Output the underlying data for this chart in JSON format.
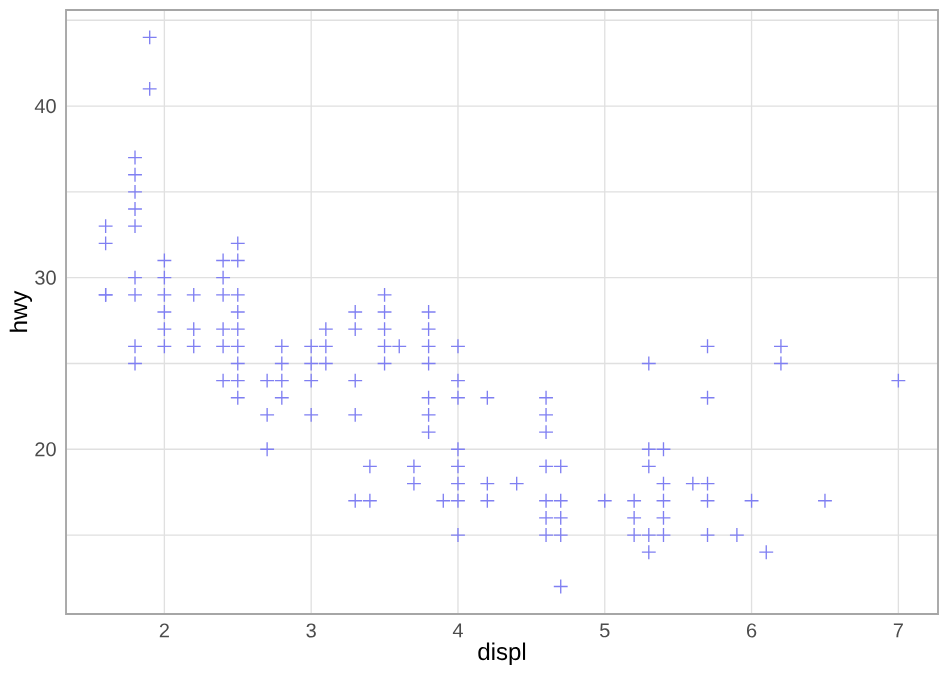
{
  "chart_data": {
    "type": "scatter",
    "xlabel": "displ",
    "ylabel": "hwy",
    "x": [
      1.8,
      1.9,
      1.9,
      1.8,
      1.8,
      1.8,
      1.8,
      1.6,
      1.6,
      1.6,
      2.5,
      2.0,
      2.4,
      2.5,
      1.8,
      2.0,
      2.4,
      1.6,
      1.8,
      2.0,
      2.2,
      2.4,
      2.5,
      3.5,
      2.0,
      2.5,
      3.3,
      3.5,
      3.8,
      2.0,
      2.2,
      2.4,
      2.5,
      3.1,
      3.3,
      3.5,
      3.8,
      1.8,
      2.0,
      2.2,
      2.4,
      2.5,
      2.8,
      3.0,
      3.1,
      3.5,
      3.6,
      3.8,
      4.0,
      5.7,
      6.2,
      1.8,
      2.5,
      2.8,
      3.0,
      3.1,
      3.5,
      3.8,
      5.3,
      6.2,
      2.4,
      2.5,
      2.7,
      2.8,
      3.0,
      3.3,
      4.0,
      7.0,
      2.5,
      2.8,
      3.8,
      4.0,
      4.2,
      4.6,
      5.7,
      2.7,
      3.0,
      3.3,
      3.8,
      4.6,
      3.8,
      4.6,
      2.7,
      4.0,
      5.3,
      5.4,
      3.4,
      3.7,
      4.0,
      4.6,
      4.7,
      5.3,
      3.7,
      4.0,
      4.2,
      4.4,
      5.4,
      5.6,
      5.7,
      3.3,
      3.4,
      3.9,
      4.0,
      4.2,
      4.6,
      4.7,
      5.0,
      5.2,
      5.4,
      5.7,
      6.0,
      6.5,
      4.6,
      4.7,
      5.2,
      5.4,
      4.0,
      4.6,
      4.7,
      5.2,
      5.3,
      5.4,
      5.7,
      5.9,
      5.3,
      6.1,
      4.7
    ],
    "values": [
      34,
      44,
      41,
      37,
      36,
      35,
      33,
      33,
      32,
      29,
      32,
      31,
      31,
      31,
      30,
      30,
      30,
      29,
      29,
      29,
      29,
      29,
      29,
      29,
      28,
      28,
      28,
      28,
      28,
      27,
      27,
      27,
      27,
      27,
      27,
      27,
      27,
      26,
      26,
      26,
      26,
      26,
      26,
      26,
      26,
      26,
      26,
      26,
      26,
      26,
      26,
      25,
      25,
      25,
      25,
      25,
      25,
      25,
      25,
      25,
      24,
      24,
      24,
      24,
      24,
      24,
      24,
      24,
      23,
      23,
      23,
      23,
      23,
      23,
      23,
      22,
      22,
      22,
      22,
      22,
      21,
      21,
      20,
      20,
      20,
      20,
      19,
      19,
      19,
      19,
      19,
      19,
      18,
      18,
      18,
      18,
      18,
      18,
      18,
      17,
      17,
      17,
      17,
      17,
      17,
      17,
      17,
      17,
      17,
      17,
      17,
      17,
      16,
      16,
      16,
      16,
      15,
      15,
      15,
      15,
      15,
      15,
      15,
      15,
      14,
      14,
      12
    ],
    "color": "#7f7ff2",
    "marker": "cross",
    "grid": true,
    "xlim": [
      1.33,
      7.27
    ],
    "ylim": [
      10.4,
      45.6
    ],
    "xticks": [
      2,
      3,
      4,
      5,
      6,
      7
    ],
    "yticks": [
      {
        "value": 15,
        "label": null
      },
      20,
      {
        "value": 25,
        "label": null
      },
      30,
      {
        "value": 35,
        "label": null
      },
      40,
      {
        "value": 45,
        "label": null
      }
    ]
  }
}
